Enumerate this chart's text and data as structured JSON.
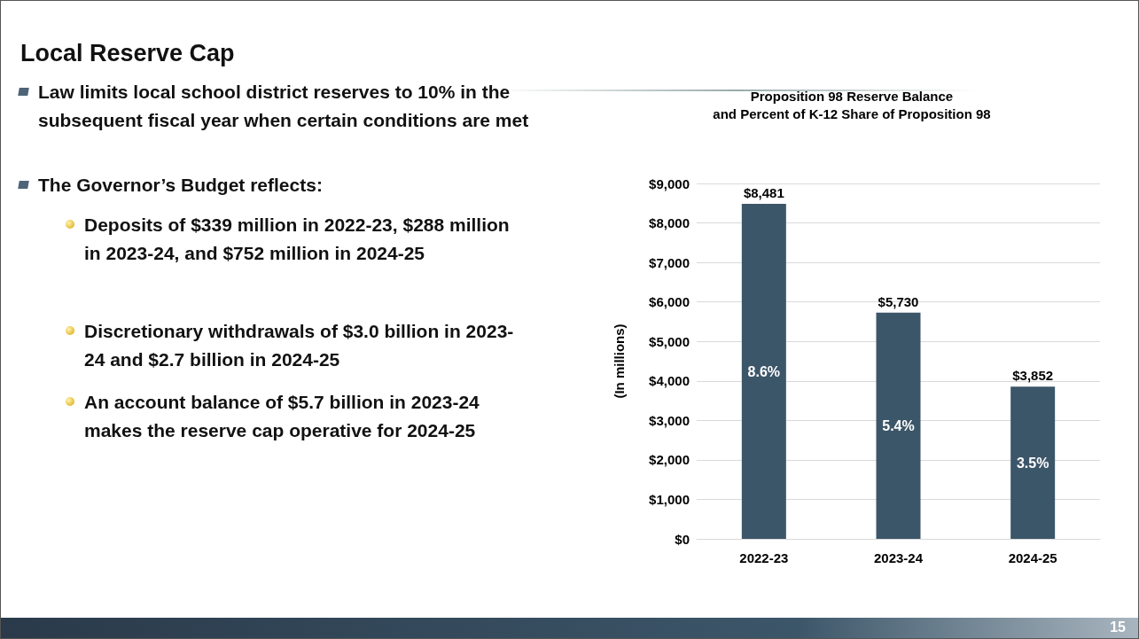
{
  "chart_data": {
    "type": "bar",
    "title": "Proposition 98 Reserve Balance\nand Percent of K-12 Share of Proposition 98",
    "ylabel": "(In millions)",
    "categories": [
      "2022-23",
      "2023-24",
      "2024-25"
    ],
    "values": [
      8481,
      5730,
      3852
    ],
    "color": "#3c5669",
    "value_labels": [
      "$8,481",
      "$5,730",
      "$3,852"
    ],
    "ylim": [
      0,
      9000
    ],
    "yticks": [
      {
        "value": 0,
        "label": "$0"
      },
      {
        "value": 1000,
        "label": "$1,000"
      },
      {
        "value": 2000,
        "label": "$2,000"
      },
      {
        "value": 3000,
        "label": "$3,000"
      },
      {
        "value": 4000,
        "label": "$4,000"
      },
      {
        "value": 5000,
        "label": "$5,000"
      },
      {
        "value": 6000,
        "label": "$6,000"
      },
      {
        "value": 7000,
        "label": "$7,000"
      },
      {
        "value": 8000,
        "label": "$8,000"
      },
      {
        "value": 9000,
        "label": "$9,000"
      }
    ],
    "grid": "y",
    "annotations": [
      "Local Reserve Cap",
      "Law limits local school district reserves to 10% in the subsequent fiscal year when certain conditions are met",
      "The Governor’s Budget reflects:",
      "Deposits of $339 million in 2022-23, $288 million in 2023-24, and $752 million in 2024-25",
      "Discretionary withdrawals of $3.0 billion in 2023-24 and $2.7 billion in 2024-25",
      "An account balance of $5.7 billion in 2023-24 makes the reserve cap operative for 2024-25",
      "8.6%",
      "5.4%",
      "3.5%",
      "15"
    ]
  }
}
